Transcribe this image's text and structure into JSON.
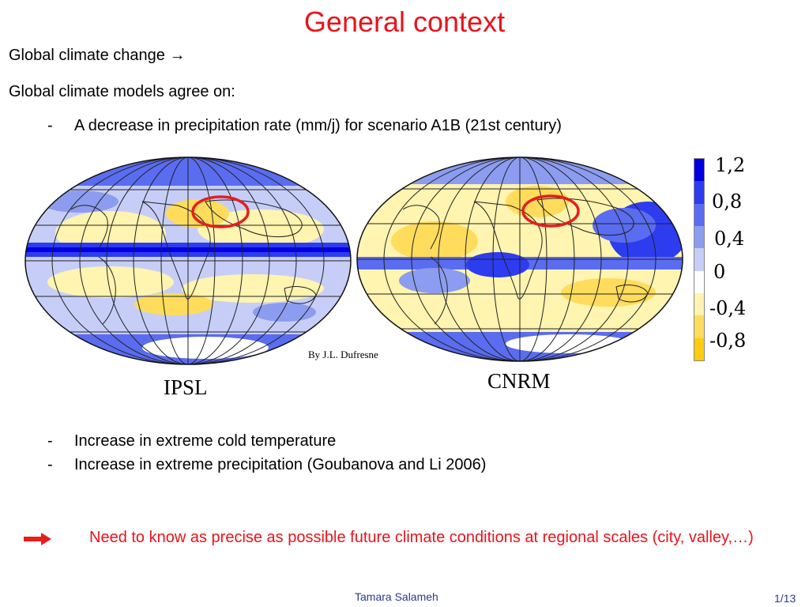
{
  "slide": {
    "title": "General context",
    "line1": "Global climate change",
    "line1_arrow": "→",
    "line2": "Global climate models agree on:",
    "bullet_marker": "-",
    "bullet1": "A decrease in precipitation rate (mm/j) for scenario A1B (21st century)",
    "maps": {
      "left_label": "IPSL",
      "right_label": "CNRM",
      "credit": "By J.L. Dufresne"
    },
    "legend": {
      "labels": [
        "1,2",
        "0,8",
        "0,4",
        "0",
        "-0,4",
        "-0,8"
      ],
      "colors": [
        "#0000e0",
        "#2e3cf0",
        "#5a6cf0",
        "#8c9cf0",
        "#c6cef8",
        "#ffffff",
        "#fff4b0",
        "#ffdc5c",
        "#ffcc10"
      ]
    },
    "bullet2": "Increase in extreme cold temperature",
    "bullet3": "Increase in extreme precipitation (Goubanova and Li 2006)",
    "conclusion": "Need to know as precise as possible future climate conditions at regional scales (city, valley,…)",
    "footer": {
      "author": "Tamara Salameh",
      "page": "1/13"
    }
  }
}
